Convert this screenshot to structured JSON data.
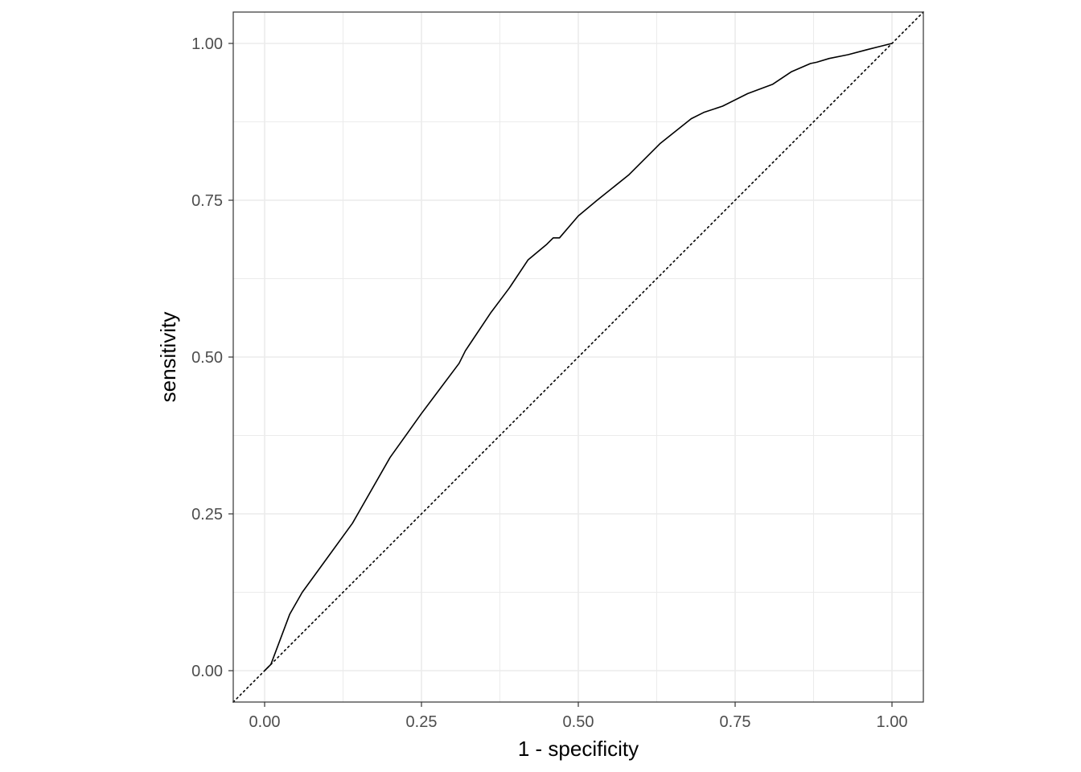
{
  "chart_data": {
    "type": "line",
    "title": "",
    "xlabel": "1 - specificity",
    "ylabel": "sensitivity",
    "xlim": [
      -0.05,
      1.05
    ],
    "ylim": [
      -0.05,
      1.05
    ],
    "x_ticks": [
      0,
      0.25,
      0.5,
      0.75,
      1
    ],
    "x_tick_labels": [
      "0.00",
      "0.25",
      "0.50",
      "0.75",
      "1.00"
    ],
    "y_ticks": [
      0,
      0.25,
      0.5,
      0.75,
      1
    ],
    "y_tick_labels": [
      "0.00",
      "0.25",
      "0.50",
      "0.75",
      "1.00"
    ],
    "minor_ticks": [
      0.125,
      0.375,
      0.625,
      0.875
    ],
    "grid": true,
    "legend": "none",
    "aspect": "equal",
    "series": [
      {
        "values_x": [
          0,
          0.01,
          0.04,
          0.06,
          0.1,
          0.14,
          0.2,
          0.25,
          0.28,
          0.31,
          0.32,
          0.33,
          0.36,
          0.39,
          0.42,
          0.45,
          0.46,
          0.47,
          0.5,
          0.53,
          0.58,
          0.63,
          0.68,
          0.7,
          0.73,
          0.77,
          0.81,
          0.84,
          0.87,
          0.88,
          0.9,
          0.93,
          0.96,
          0.98,
          1.0
        ],
        "values_y": [
          0,
          0.01,
          0.09,
          0.125,
          0.18,
          0.235,
          0.34,
          0.41,
          0.45,
          0.49,
          0.51,
          0.525,
          0.57,
          0.61,
          0.655,
          0.68,
          0.69,
          0.69,
          0.725,
          0.75,
          0.79,
          0.84,
          0.88,
          0.89,
          0.9,
          0.92,
          0.935,
          0.955,
          0.968,
          0.97,
          0.976,
          0.982,
          0.99,
          0.995,
          1.0
        ]
      }
    ],
    "reference_line": {
      "style": "dotted",
      "values_x": [
        -0.05,
        1.05
      ],
      "values_y": [
        -0.05,
        1.05
      ]
    },
    "colors": {
      "curve": "#000000",
      "reference": "#000000",
      "grid_major": "#ebebeb",
      "grid_minor": "#ebebeb",
      "panel_border": "#333333",
      "tick_text": "#4d4d4d",
      "axis_title": "#000000"
    }
  }
}
